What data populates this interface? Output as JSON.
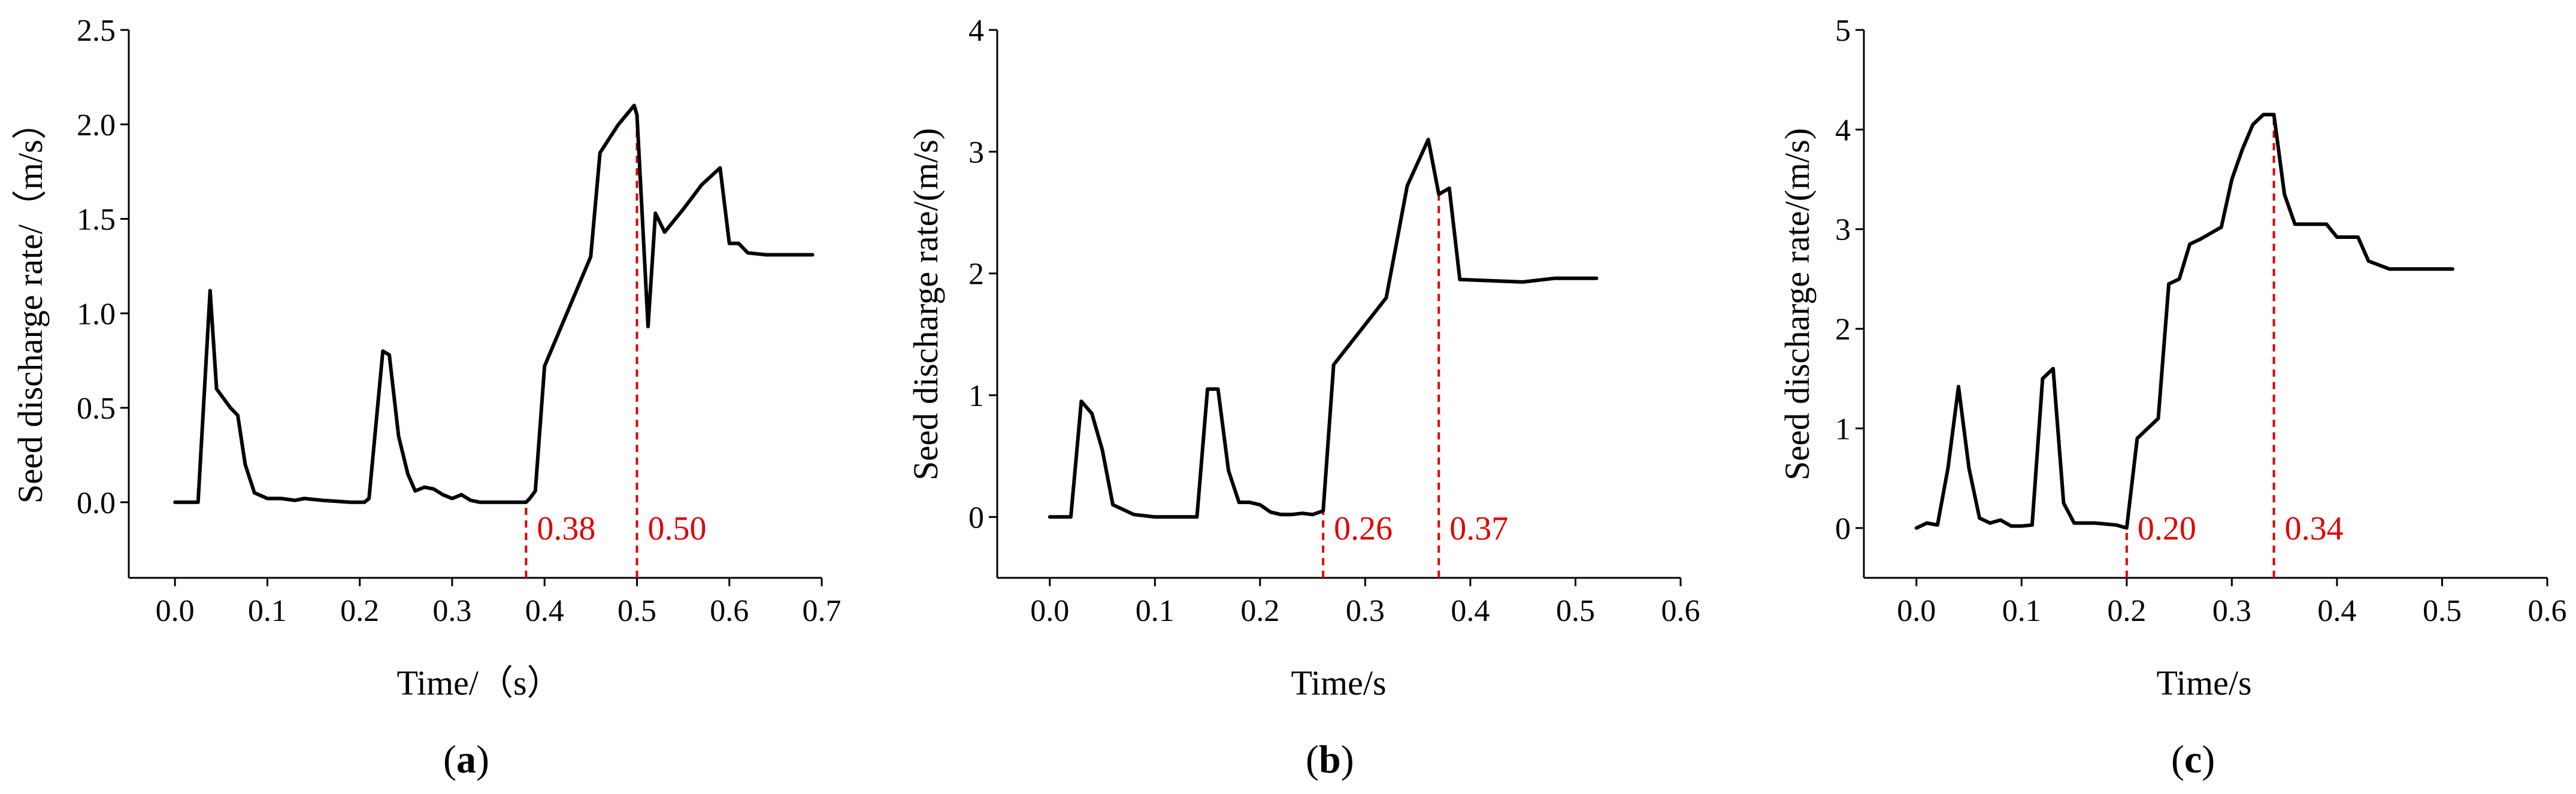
{
  "chart_data": [
    {
      "type": "line",
      "panel": "a",
      "xlabel": "Time/（s）",
      "ylabel": "Seed discharge rate/（m/s）",
      "xlim": [
        -0.05,
        0.7
      ],
      "ylim": [
        -0.4,
        2.5
      ],
      "xticks": [
        "0.0",
        "0.1",
        "0.2",
        "0.3",
        "0.4",
        "0.5",
        "0.6",
        "0.7"
      ],
      "yticks": [
        "0.0",
        "0.5",
        "1.0",
        "1.5",
        "2.0",
        "2.5"
      ],
      "x": [
        0,
        0.025,
        0.038,
        0.045,
        0.06,
        0.068,
        0.076,
        0.086,
        0.1,
        0.115,
        0.13,
        0.14,
        0.16,
        0.19,
        0.205,
        0.21,
        0.225,
        0.232,
        0.242,
        0.252,
        0.26,
        0.27,
        0.28,
        0.29,
        0.3,
        0.31,
        0.32,
        0.33,
        0.34,
        0.36,
        0.38,
        0.384,
        0.39,
        0.4,
        0.45,
        0.46,
        0.48,
        0.497,
        0.5,
        0.512,
        0.52,
        0.53,
        0.55,
        0.57,
        0.59,
        0.6,
        0.61,
        0.62,
        0.64,
        0.66,
        0.69
      ],
      "y": [
        0,
        0,
        1.12,
        0.6,
        0.5,
        0.46,
        0.2,
        0.05,
        0.02,
        0.02,
        0.01,
        0.02,
        0.01,
        0,
        0,
        0.02,
        0.8,
        0.78,
        0.35,
        0.15,
        0.06,
        0.08,
        0.07,
        0.04,
        0.02,
        0.04,
        0.01,
        0,
        0,
        0,
        0,
        0.02,
        0.06,
        0.72,
        1.3,
        1.85,
        2.0,
        2.1,
        2.05,
        0.93,
        1.53,
        1.43,
        1.55,
        1.68,
        1.77,
        1.37,
        1.37,
        1.32,
        1.31,
        1.31,
        1.31
      ],
      "markers": [
        {
          "x": 0.38,
          "label": "0.38"
        },
        {
          "x": 0.5,
          "label": "0.50"
        }
      ]
    },
    {
      "type": "line",
      "panel": "b",
      "xlabel": "Time/s",
      "ylabel": "Seed discharge rate/(m/s)",
      "xlim": [
        -0.05,
        0.6
      ],
      "ylim": [
        -0.5,
        4
      ],
      "xticks": [
        "0.0",
        "0.1",
        "0.2",
        "0.3",
        "0.4",
        "0.5",
        "0.6"
      ],
      "yticks": [
        "0",
        "1",
        "2",
        "3",
        "4"
      ],
      "x": [
        0,
        0.02,
        0.03,
        0.04,
        0.05,
        0.06,
        0.08,
        0.1,
        0.12,
        0.14,
        0.15,
        0.16,
        0.17,
        0.18,
        0.19,
        0.2,
        0.21,
        0.22,
        0.23,
        0.24,
        0.25,
        0.26,
        0.27,
        0.32,
        0.34,
        0.36,
        0.37,
        0.38,
        0.39,
        0.45,
        0.48,
        0.52
      ],
      "y": [
        0,
        0,
        0.95,
        0.85,
        0.55,
        0.1,
        0.02,
        0,
        0,
        0,
        1.05,
        1.05,
        0.38,
        0.12,
        0.12,
        0.1,
        0.04,
        0.02,
        0.02,
        0.03,
        0.02,
        0.05,
        1.25,
        1.8,
        2.72,
        3.1,
        2.65,
        2.7,
        1.95,
        1.93,
        1.96,
        1.96
      ],
      "markers": [
        {
          "x": 0.26,
          "label": "0.26"
        },
        {
          "x": 0.37,
          "label": "0.37"
        }
      ]
    },
    {
      "type": "line",
      "panel": "c",
      "xlabel": "Time/s",
      "ylabel": "Seed discharge rate/(m/s)",
      "xlim": [
        -0.05,
        0.6
      ],
      "ylim": [
        -0.5,
        5
      ],
      "xticks": [
        "0.0",
        "0.1",
        "0.2",
        "0.3",
        "0.4",
        "0.5",
        "0.6"
      ],
      "yticks": [
        "0",
        "1",
        "2",
        "3",
        "4",
        "5"
      ],
      "x": [
        0,
        0.01,
        0.02,
        0.03,
        0.04,
        0.05,
        0.06,
        0.07,
        0.08,
        0.09,
        0.1,
        0.11,
        0.12,
        0.13,
        0.14,
        0.15,
        0.17,
        0.19,
        0.2,
        0.21,
        0.23,
        0.24,
        0.25,
        0.26,
        0.27,
        0.29,
        0.3,
        0.31,
        0.32,
        0.33,
        0.34,
        0.35,
        0.36,
        0.39,
        0.4,
        0.42,
        0.43,
        0.45,
        0.47,
        0.51
      ],
      "y": [
        0,
        0.05,
        0.03,
        0.6,
        1.42,
        0.6,
        0.1,
        0.05,
        0.08,
        0.02,
        0.02,
        0.03,
        1.5,
        1.6,
        0.25,
        0.05,
        0.05,
        0.03,
        0,
        0.9,
        1.1,
        2.45,
        2.5,
        2.85,
        2.9,
        3.02,
        3.5,
        3.8,
        4.05,
        4.15,
        4.15,
        3.35,
        3.05,
        3.05,
        2.92,
        2.92,
        2.68,
        2.6,
        2.6,
        2.6
      ],
      "markers": [
        {
          "x": 0.2,
          "label": "0.20"
        },
        {
          "x": 0.34,
          "label": "0.34"
        }
      ]
    }
  ],
  "panel_labels": [
    "a",
    "b",
    "c"
  ]
}
